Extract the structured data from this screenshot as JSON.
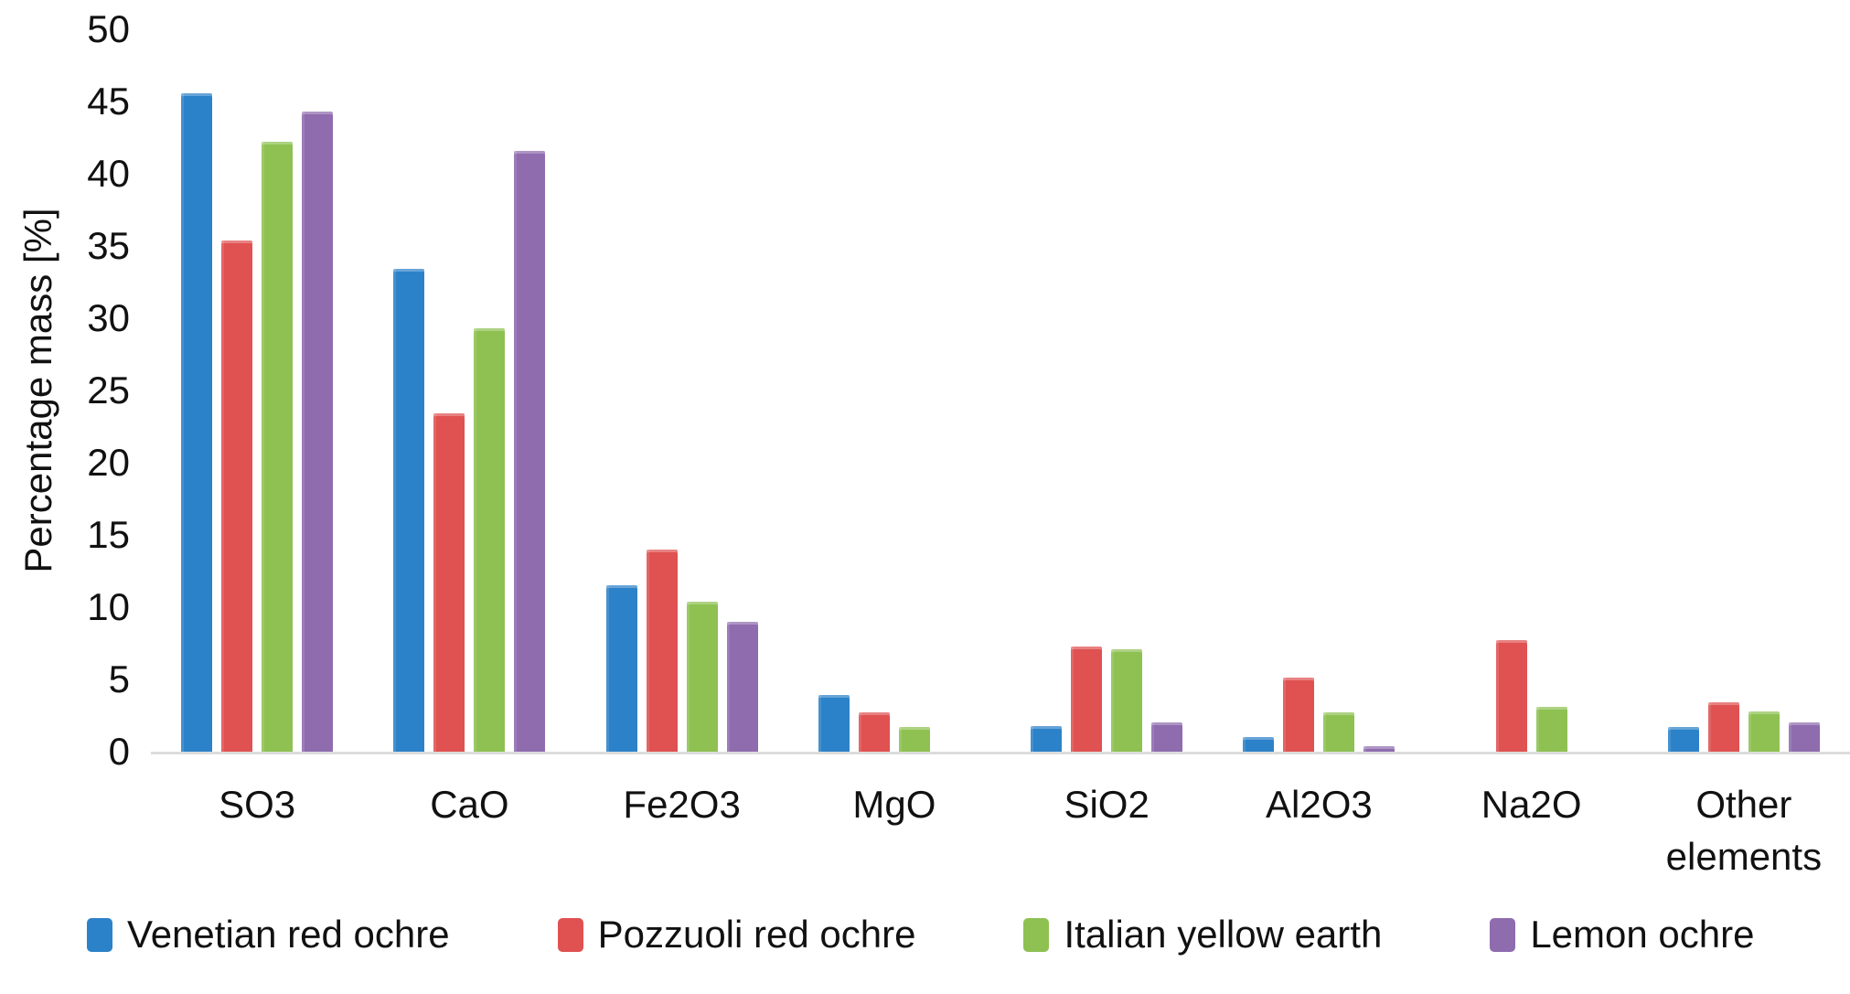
{
  "chart_data": {
    "type": "bar",
    "title": "",
    "ylabel": "Percentage mass [%]",
    "xlabel": "",
    "ylim": [
      0,
      50
    ],
    "ytick_step": 5,
    "grid": false,
    "legend_position": "bottom",
    "categories": [
      "SO3",
      "CaO",
      "Fe2O3",
      "MgO",
      "SiO2",
      "Al2O3",
      "Na2O",
      "Other elements"
    ],
    "series": [
      {
        "name": "Venetian red ochre",
        "color": "#2C82C9",
        "values": [
          45.6,
          33.4,
          11.5,
          3.9,
          1.8,
          1.0,
          0,
          1.7
        ]
      },
      {
        "name": "Pozzuoli red ochre",
        "color": "#E05151",
        "values": [
          35.4,
          23.4,
          14.0,
          2.7,
          7.3,
          5.1,
          7.7,
          3.4
        ]
      },
      {
        "name": "Italian yellow earth",
        "color": "#8EC152",
        "values": [
          42.2,
          29.3,
          10.4,
          1.7,
          7.1,
          2.7,
          3.1,
          2.8
        ]
      },
      {
        "name": "Lemon ochre",
        "color": "#8E6CAE",
        "values": [
          44.3,
          41.6,
          9.0,
          0,
          2.0,
          0.4,
          0,
          2.0
        ]
      }
    ],
    "axis_color": "#dcdcdc",
    "text_color": "#111111"
  }
}
